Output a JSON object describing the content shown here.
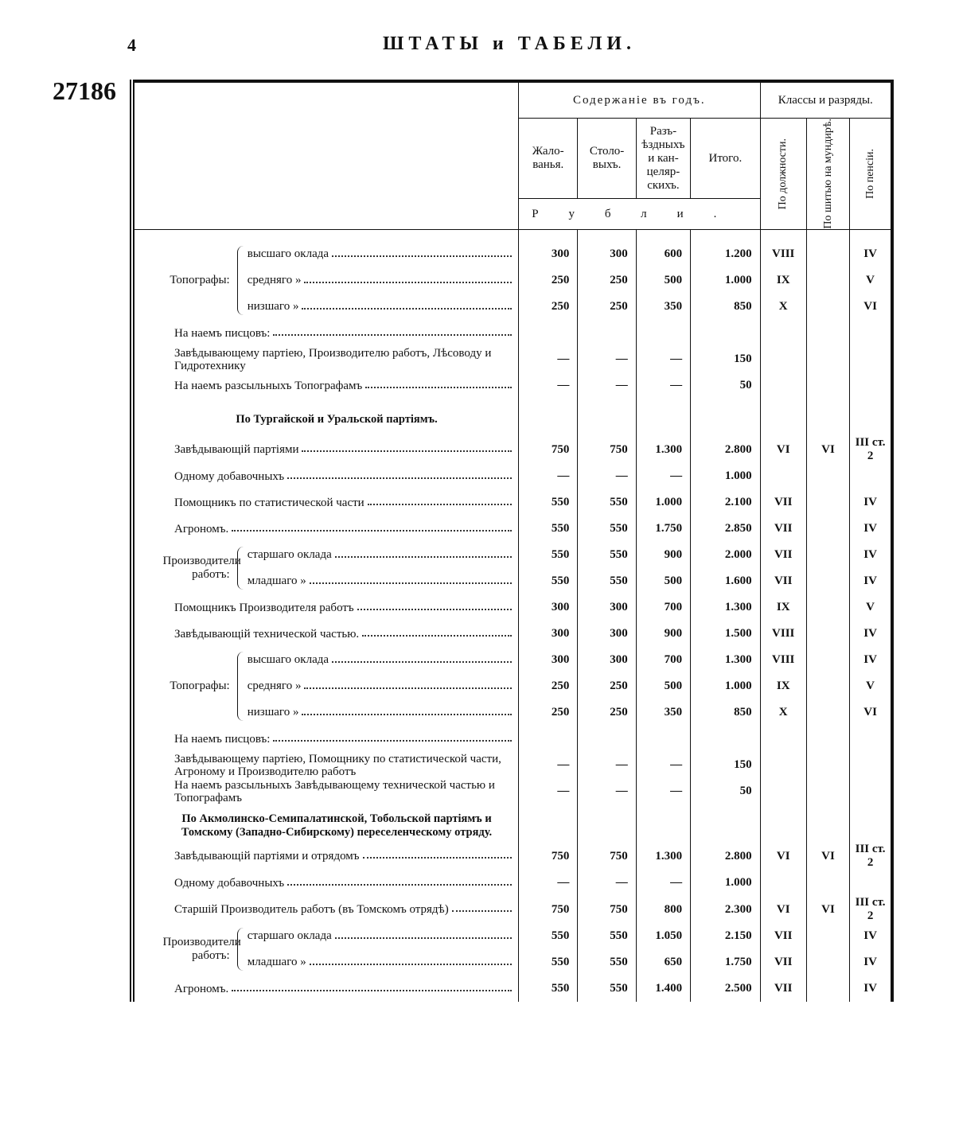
{
  "header": {
    "page_number": "4",
    "title": "ШТАТЫ и ТАБЕЛИ.",
    "doc_number": "27186"
  },
  "table": {
    "group_headers": {
      "pay": "Содержаніе въ годъ.",
      "classes": "Классы и разряды."
    },
    "pay_columns": {
      "salary": "Жало-ванья.",
      "table": "Столо-выхъ.",
      "travel": "Разъ-ѣздныхъ и кан-целяр-скихъ.",
      "total": "Итого."
    },
    "unit": "Рубли.",
    "class_columns": {
      "rank": "По должности.",
      "uniform": "По шитью на мундирѣ.",
      "pension": "По пенсіи."
    },
    "rows": [
      {
        "group": "Топографы:",
        "items": [
          {
            "label": "высшаго оклада",
            "cells": {
              "salary": "300",
              "table": "300",
              "travel": "600",
              "total": "1.200",
              "rank": "VIII",
              "pension": "IV"
            }
          },
          {
            "label": "средняго »",
            "cells": {
              "salary": "250",
              "table": "250",
              "travel": "500",
              "total": "1.000",
              "rank": "IX",
              "pension": "V"
            }
          },
          {
            "label": "низшаго »",
            "cells": {
              "salary": "250",
              "table": "250",
              "travel": "350",
              "total": "850",
              "rank": "X",
              "pension": "VI"
            }
          }
        ]
      },
      {
        "label": "На наемъ писцовъ:"
      },
      {
        "label": "Завѣдывающему партіею, Производителю работъ, Лѣсоводу и Гидротехнику",
        "cells": {
          "salary": "—",
          "table": "—",
          "travel": "—",
          "total": "150"
        }
      },
      {
        "label": "На наемъ разсыльныхъ Топографамъ",
        "cells": {
          "salary": "—",
          "table": "—",
          "travel": "—",
          "total": "50"
        }
      },
      {
        "heading": "По Тургайской и Уральской партіямъ."
      },
      {
        "label": "Завѣдывающій партіями",
        "cells": {
          "salary": "750",
          "table": "750",
          "travel": "1.300",
          "total": "2.800",
          "rank": "VI",
          "uniform": "VI",
          "pension": "III ст. 2"
        }
      },
      {
        "label": "Одному добавочныхъ",
        "cells": {
          "salary": "—",
          "table": "—",
          "travel": "—",
          "total": "1.000"
        }
      },
      {
        "label": "Помощникъ по статистической части",
        "cells": {
          "salary": "550",
          "table": "550",
          "travel": "1.000",
          "total": "2.100",
          "rank": "VII",
          "pension": "IV"
        }
      },
      {
        "label": "Агрономъ.",
        "cells": {
          "salary": "550",
          "table": "550",
          "travel": "1.750",
          "total": "2.850",
          "rank": "VII",
          "pension": "IV"
        }
      },
      {
        "group": "Производители работъ:",
        "items": [
          {
            "label": "старшаго оклада",
            "cells": {
              "salary": "550",
              "table": "550",
              "travel": "900",
              "total": "2.000",
              "rank": "VII",
              "pension": "IV"
            }
          },
          {
            "label": "младшаго »",
            "cells": {
              "salary": "550",
              "table": "550",
              "travel": "500",
              "total": "1.600",
              "rank": "VII",
              "pension": "IV"
            }
          }
        ]
      },
      {
        "label": "Помощникъ Производителя работъ",
        "cells": {
          "salary": "300",
          "table": "300",
          "travel": "700",
          "total": "1.300",
          "rank": "IX",
          "pension": "V"
        }
      },
      {
        "label": "Завѣдывающій технической частью.",
        "cells": {
          "salary": "300",
          "table": "300",
          "travel": "900",
          "total": "1.500",
          "rank": "VIII",
          "pension": "IV"
        }
      },
      {
        "group": "Топографы:",
        "items": [
          {
            "label": "высшаго оклада",
            "cells": {
              "salary": "300",
              "table": "300",
              "travel": "700",
              "total": "1.300",
              "rank": "VIII",
              "pension": "IV"
            }
          },
          {
            "label": "средняго »",
            "cells": {
              "salary": "250",
              "table": "250",
              "travel": "500",
              "total": "1.000",
              "rank": "IX",
              "pension": "V"
            }
          },
          {
            "label": "низшаго »",
            "cells": {
              "salary": "250",
              "table": "250",
              "travel": "350",
              "total": "850",
              "rank": "X",
              "pension": "VI"
            }
          }
        ]
      },
      {
        "label": "На наемъ писцовъ:"
      },
      {
        "label": "Завѣдывающему партіею, Помощнику по статистической части, Агроному и Производителю работъ",
        "cells": {
          "salary": "—",
          "table": "—",
          "travel": "—",
          "total": "150"
        }
      },
      {
        "label": "На наемъ разсыльныхъ Завѣдывающему технической частью и Топографамъ",
        "cells": {
          "salary": "—",
          "table": "—",
          "travel": "—",
          "total": "50"
        }
      },
      {
        "heading": "По Акмолинско-Семипалатинской, Тобольской партіямъ и Томскому (Западно-Сибирскому) переселенческому отряду."
      },
      {
        "label": "Завѣдывающій партіями и отрядомъ",
        "cells": {
          "salary": "750",
          "table": "750",
          "travel": "1.300",
          "total": "2.800",
          "rank": "VI",
          "uniform": "VI",
          "pension": "III ст. 2"
        }
      },
      {
        "label": "Одному добавочныхъ",
        "cells": {
          "salary": "—",
          "table": "—",
          "travel": "—",
          "total": "1.000"
        }
      },
      {
        "label": "Старшій Производитель работъ (въ Томскомъ отрядѣ)",
        "cells": {
          "salary": "750",
          "table": "750",
          "travel": "800",
          "total": "2.300",
          "rank": "VI",
          "uniform": "VI",
          "pension": "III ст. 2"
        }
      },
      {
        "group": "Производители работъ:",
        "items": [
          {
            "label": "старшаго оклада",
            "cells": {
              "salary": "550",
              "table": "550",
              "travel": "1.050",
              "total": "2.150",
              "rank": "VII",
              "pension": "IV"
            }
          },
          {
            "label": "младшаго »",
            "cells": {
              "salary": "550",
              "table": "550",
              "travel": "650",
              "total": "1.750",
              "rank": "VII",
              "pension": "IV"
            }
          }
        ]
      },
      {
        "label": "Агрономъ.",
        "cells": {
          "salary": "550",
          "table": "550",
          "travel": "1.400",
          "total": "2.500",
          "rank": "VII",
          "pension": "IV"
        }
      }
    ]
  }
}
